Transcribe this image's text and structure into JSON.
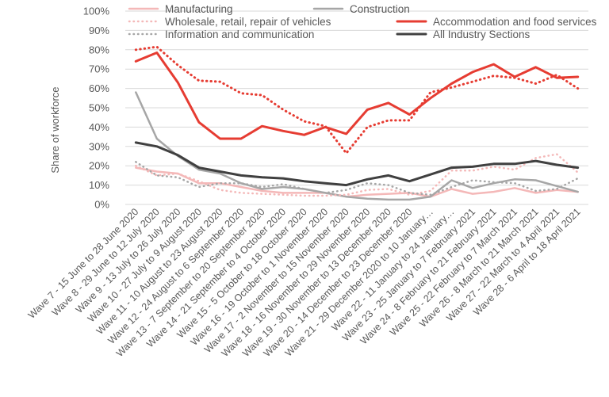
{
  "chart_data": {
    "type": "line",
    "ylabel": "Share of workforce",
    "xlabel": "",
    "ylim": [
      0,
      100
    ],
    "y_ticks": [
      "0%",
      "10%",
      "20%",
      "30%",
      "40%",
      "50%",
      "60%",
      "70%",
      "80%",
      "90%",
      "100%"
    ],
    "grid": "horizontal",
    "legend_position": "top",
    "categories": [
      "Wave 7 - 15 June to 28 June 2020",
      "Wave 8 - 29 June to 12 July 2020",
      "Wave 9 - 13 July to 26 July 2020",
      "Wave 10 - 27 July to 9 August 2020",
      "Wave 11 - 10 August to 23 August 2020",
      "Wave 12 - 24 August to 6 September 2020",
      "Wave 13 - 7 September to 20 September 2020",
      "Wave 14 - 21 September to 4 October 2020",
      "Wave 15 - 5 October to 18 October 2020",
      "Wave 16 - 19 October to 1 November 2020",
      "Wave 17 - 2 November to 15 November 2020",
      "Wave 18 - 16 November to 29 November 2020",
      "Wave 19 - 30 November to 13 December 2020",
      "Wave 20 - 14 December to 23 December 2020",
      "Wave 21 - 29 December 2020 to 10 January…",
      "Wave 22 - 11 January to 24 January…",
      "Wave 23 - 25 January to 7 February 2021",
      "Wave 24 - 8 February to 21 February 2021",
      "Wave 25 - 22 February to 7 March 2021",
      "Wave 26 - 8 March to 21 March 2021",
      "Wave 27 - 22 March to 4 April 2021",
      "Wave 28 - 6 April to 18 April 2021"
    ],
    "series": [
      {
        "name": "Manufacturing",
        "color": "#f4b8b8",
        "style": "solid",
        "width": 2.5,
        "values": [
          19,
          17,
          16,
          11,
          11,
          9,
          7,
          6,
          6,
          6,
          4,
          5,
          5.5,
          6,
          4,
          8,
          5.5,
          6.5,
          8.5,
          6,
          7.5,
          6.5
        ]
      },
      {
        "name": "Construction",
        "color": "#a6a6a6",
        "style": "solid",
        "width": 2.5,
        "values": [
          58,
          34,
          25,
          18,
          16,
          11,
          8,
          9,
          8,
          6,
          4,
          3,
          2.5,
          2.5,
          4,
          12.5,
          8.5,
          11,
          13,
          12.5,
          9.5,
          6.5
        ]
      },
      {
        "name": "Wholesale, retail, repair of vehicles",
        "color": "#f4b8b8",
        "style": "dotted",
        "width": 2.5,
        "values": [
          20,
          15,
          16,
          12,
          7.5,
          6,
          5.5,
          5,
          4.5,
          4.5,
          5,
          7.5,
          8,
          5,
          7,
          17.5,
          17.5,
          19.5,
          18,
          24,
          26,
          16.5
        ]
      },
      {
        "name": "Accommodation and food services",
        "color": "#e63c32",
        "style": "solid",
        "width": 3,
        "values": [
          74,
          78.5,
          63,
          42.5,
          34,
          34,
          40.5,
          38,
          36,
          40,
          36.5,
          49,
          52.5,
          46.5,
          55,
          62.5,
          68.5,
          72.5,
          66,
          71,
          65.5,
          66
        ]
      },
      {
        "name": "Information and communication",
        "color": "#a6a6a6",
        "style": "dotted",
        "width": 2.5,
        "values": [
          22,
          15,
          14,
          9,
          11,
          11,
          9,
          10.5,
          8,
          6,
          7.5,
          11,
          10,
          6,
          5,
          9,
          12.5,
          11.5,
          11,
          7,
          8,
          13.5
        ]
      },
      {
        "name": "Accommodation and food services (dotted)",
        "color": "#e63c32",
        "style": "dotted",
        "width": 3,
        "legend": false,
        "values": [
          80,
          81.5,
          72,
          64,
          63.5,
          57.5,
          56.5,
          49,
          43,
          40.5,
          26.5,
          40,
          43.5,
          43.5,
          58,
          60.5,
          63.5,
          66.5,
          65.5,
          62.5,
          67,
          60
        ]
      },
      {
        "name": "All Industry Sections",
        "color": "#404040",
        "style": "solid",
        "width": 3,
        "values": [
          32,
          30,
          25.5,
          19,
          17,
          15,
          14,
          13.5,
          12,
          11,
          10,
          13,
          15,
          12,
          15.5,
          19,
          19.5,
          21,
          21,
          22.5,
          20.5,
          19
        ]
      }
    ]
  }
}
